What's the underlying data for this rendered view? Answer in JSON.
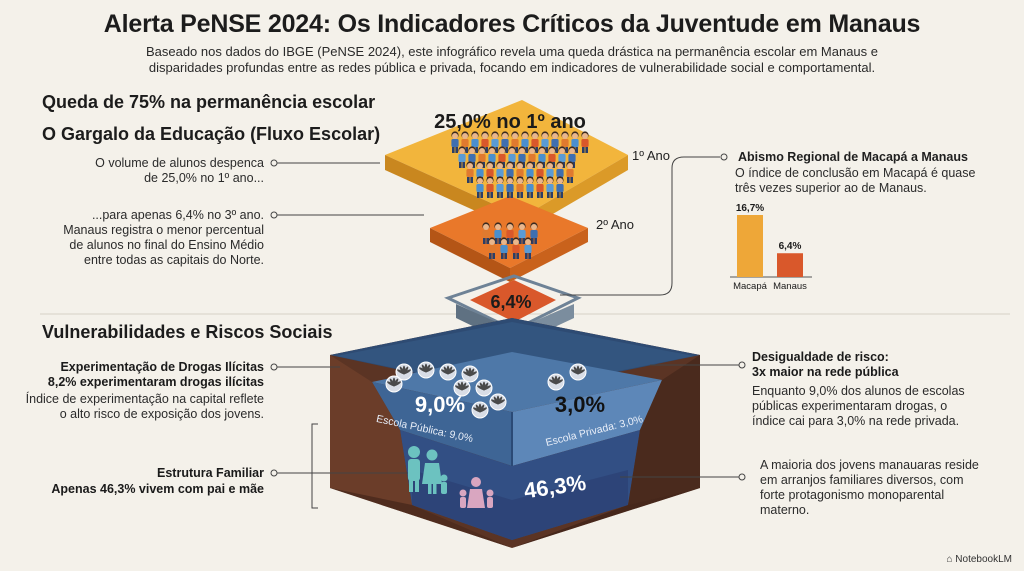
{
  "header": {
    "title": "Alerta PeNSE 2024: Os Indicadores Críticos da Juventude em Manaus",
    "subtitle": "Baseado nos dados do IBGE (PeNSE 2024), este infográfico revela uma queda drástica na permanência escolar em Manaus e disparidades profundas entre as redes pública e privada, focando em indicadores de vulnerabilidade social e comportamental."
  },
  "section_flow": {
    "heading1": "Queda de 75% na permanência escolar",
    "heading2": "O Gargalo da Educação (Fluxo Escolar)",
    "note1": "O volume de alunos despenca de 25,0% no 1º ano...",
    "note2": "...para apenas 6,4% no 3º ano. Manaus registra o menor percentual de alunos no final do Ensino Médio entre todas as capitais do Norte.",
    "layer1_value": "25,0% no 1º ano",
    "layer1_label": "1º Ano",
    "layer2_label": "2º Ano",
    "layer3_value": "6,4%"
  },
  "regional": {
    "title": "Abismo Regional de Macapá a Manaus",
    "text": "O índice de conclusão em Macapá é quase três vezes superior ao de Manaus.",
    "chart_data": {
      "type": "bar",
      "categories": [
        "Macapá",
        "Manaus"
      ],
      "values": [
        16.7,
        6.4
      ],
      "value_labels": [
        "16,7%",
        "6,4%"
      ],
      "colors": [
        "#eea738",
        "#d9582b"
      ]
    }
  },
  "section_risk": {
    "heading": "Vulnerabilidades e Riscos Sociais",
    "drugs_title": "Experimentação de Drogas Ilícitas",
    "drugs_stat": "8,2% experimentaram drogas ilícitas",
    "drugs_text": "Índice de experimentação na capital reflete o alto risco de exposição dos jovens.",
    "family_title": "Estrutura Familiar",
    "family_stat": "Apenas 46,3% vivem com pai e mãe",
    "inequality_title": "Desigualdade de risco:",
    "inequality_sub": "3x maior na rede pública",
    "inequality_text": "Enquanto 9,0% dos alunos de escolas públicas experimentaram drogas, o índice cai para 3,0% na rede privada.",
    "family_text": "A maioria dos jovens manauaras reside em arranjos familiares diversos, com forte protagonismo monoparental materno.",
    "public_value": "9,0%",
    "public_label": "Escola Pública: 9,0%",
    "private_value": "3,0%",
    "private_label": "Escola Privada: 3,0%",
    "family_value": "46,3%"
  },
  "brand": "NotebookLM",
  "colors": {
    "layer1": "#f1b23a",
    "layer2": "#e97a2a",
    "layer3": "#d9582b",
    "basin_dark": "#2d4a70",
    "basin_light": "#7aa6d8",
    "soil": "#5a3323"
  }
}
